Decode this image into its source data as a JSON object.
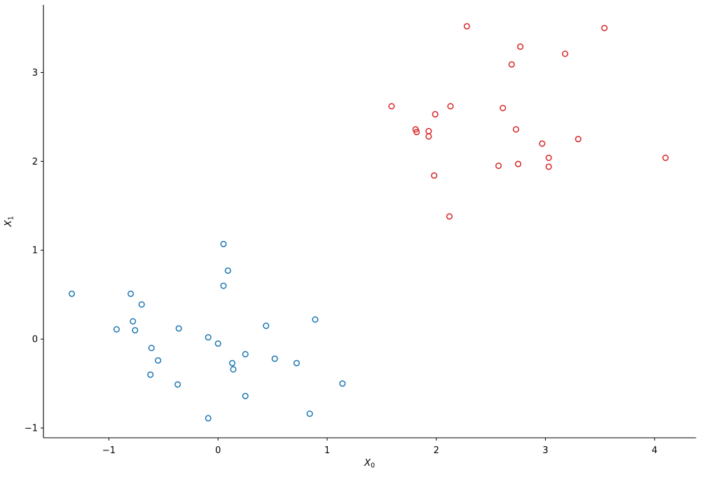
{
  "figure": {
    "background": "#ffffff",
    "axis_color": "#000000"
  },
  "chart_data": {
    "type": "scatter",
    "title": "",
    "xlabel": {
      "base": "X",
      "sub": "0"
    },
    "ylabel": {
      "base": "X",
      "sub": "1"
    },
    "xlim": [
      -1.6,
      4.38
    ],
    "ylim": [
      -1.11,
      3.76
    ],
    "grid": false,
    "legend": "none",
    "spines": [
      "left",
      "bottom"
    ],
    "marker": {
      "shape": "open-circle",
      "radius": 3.8,
      "stroke_width": 1.5
    },
    "xticks": [
      {
        "v": -1,
        "label": "−1"
      },
      {
        "v": 0,
        "label": "0"
      },
      {
        "v": 1,
        "label": "1"
      },
      {
        "v": 2,
        "label": "2"
      },
      {
        "v": 3,
        "label": "3"
      },
      {
        "v": 4,
        "label": "4"
      }
    ],
    "yticks": [
      {
        "v": -1,
        "label": "−1"
      },
      {
        "v": 0,
        "label": "0"
      },
      {
        "v": 1,
        "label": "1"
      },
      {
        "v": 2,
        "label": "2"
      },
      {
        "v": 3,
        "label": "3"
      }
    ],
    "series": [
      {
        "name": "blue-cluster",
        "color": "#1f77b4",
        "points": [
          [
            -1.34,
            0.51
          ],
          [
            -0.93,
            0.11
          ],
          [
            -0.8,
            0.51
          ],
          [
            -0.78,
            0.2
          ],
          [
            -0.76,
            0.1
          ],
          [
            -0.7,
            0.39
          ],
          [
            -0.62,
            -0.4
          ],
          [
            -0.61,
            -0.1
          ],
          [
            -0.55,
            -0.24
          ],
          [
            -0.37,
            -0.51
          ],
          [
            -0.36,
            0.12
          ],
          [
            -0.09,
            0.02
          ],
          [
            -0.09,
            -0.89
          ],
          [
            0.0,
            -0.05
          ],
          [
            0.05,
            1.07
          ],
          [
            0.05,
            0.6
          ],
          [
            0.09,
            0.77
          ],
          [
            0.13,
            -0.27
          ],
          [
            0.14,
            -0.34
          ],
          [
            0.25,
            -0.17
          ],
          [
            0.25,
            -0.64
          ],
          [
            0.44,
            0.15
          ],
          [
            0.52,
            -0.22
          ],
          [
            0.72,
            -0.27
          ],
          [
            0.84,
            -0.84
          ],
          [
            0.89,
            0.22
          ],
          [
            1.14,
            -0.5
          ]
        ]
      },
      {
        "name": "red-cluster",
        "color": "#d62728",
        "points": [
          [
            1.59,
            2.62
          ],
          [
            1.81,
            2.36
          ],
          [
            1.82,
            2.33
          ],
          [
            1.93,
            2.34
          ],
          [
            1.93,
            2.28
          ],
          [
            1.98,
            1.84
          ],
          [
            1.99,
            2.53
          ],
          [
            2.12,
            1.38
          ],
          [
            2.13,
            2.62
          ],
          [
            2.28,
            3.52
          ],
          [
            2.57,
            1.95
          ],
          [
            2.61,
            2.6
          ],
          [
            2.69,
            3.09
          ],
          [
            2.73,
            2.36
          ],
          [
            2.75,
            1.97
          ],
          [
            2.77,
            3.29
          ],
          [
            2.97,
            2.2
          ],
          [
            3.03,
            2.04
          ],
          [
            3.03,
            1.94
          ],
          [
            3.18,
            3.21
          ],
          [
            3.3,
            2.25
          ],
          [
            3.54,
            3.5
          ],
          [
            4.1,
            2.04
          ]
        ]
      }
    ]
  }
}
